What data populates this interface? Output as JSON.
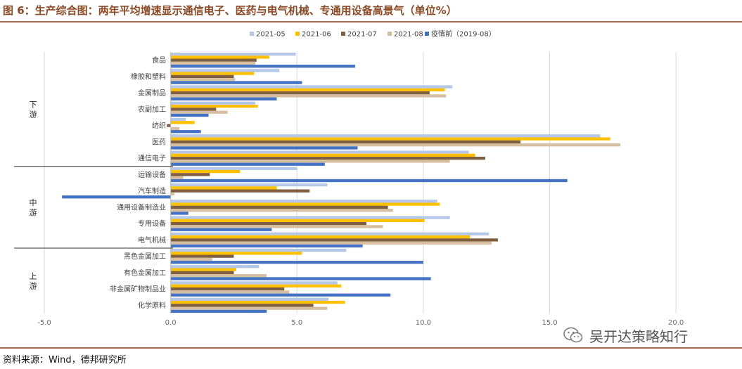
{
  "title": "图 6：生产综合图：两年平均增速显示通信电子、医药与电气机械、专通用设备高景气（单位%）",
  "source": "资料来源：Wind，德邦研究所",
  "watermark": "吴开达策略知行",
  "chart_data": {
    "type": "bar",
    "orientation": "horizontal",
    "title": "",
    "xlabel": "",
    "ylabel": "",
    "xlim": [
      -5,
      22
    ],
    "x_ticks": [
      "-5.0",
      "0.0",
      "5.0",
      "10.0",
      "15.0",
      "20.0"
    ],
    "grid": "vertical",
    "legend_position": "top",
    "categories": [
      "食品",
      "橡胶和塑料",
      "金属制品",
      "农副加工",
      "纺织",
      "医药",
      "通信电子",
      "运输设备",
      "汽车制造",
      "通用设备制造业",
      "专用设备",
      "电气机械",
      "黑色金属加工",
      "有色金属加工",
      "非金属矿物制品业",
      "化学原料"
    ],
    "groups": [
      {
        "label": "下游",
        "categories": [
          "食品",
          "橡胶和塑料",
          "金属制品",
          "农副加工",
          "纺织",
          "医药",
          "通信电子"
        ]
      },
      {
        "label": "中游",
        "categories": [
          "运输设备",
          "汽车制造",
          "通用设备制造业",
          "专用设备",
          "电气机械"
        ]
      },
      {
        "label": "上游",
        "categories": [
          "黑色金属加工",
          "有色金属加工",
          "非金属矿物制品业",
          "化学原料"
        ]
      }
    ],
    "series": [
      {
        "name": "2021-05",
        "color": "#B4C7E7",
        "values": [
          4.95,
          4.3,
          11.15,
          3.35,
          0.6,
          17.0,
          11.8,
          5.0,
          6.2,
          10.55,
          11.05,
          12.6,
          6.95,
          3.5,
          6.6,
          6.25
        ]
      },
      {
        "name": "2021-06",
        "color": "#FFC000",
        "values": [
          3.9,
          3.3,
          10.85,
          3.45,
          0.95,
          17.4,
          12.05,
          2.75,
          4.2,
          10.65,
          10.05,
          11.85,
          5.2,
          2.6,
          6.75,
          6.9
        ]
      },
      {
        "name": "2021-07",
        "color": "#7F5F3F",
        "values": [
          3.4,
          2.5,
          10.25,
          1.8,
          -0.15,
          13.85,
          12.45,
          1.55,
          5.5,
          8.6,
          7.75,
          12.95,
          2.5,
          2.5,
          4.5,
          5.65
        ]
      },
      {
        "name": "2021-08",
        "color": "#D6BFA0",
        "values": [
          3.35,
          2.55,
          10.9,
          2.25,
          0.35,
          17.8,
          11.05,
          0.5,
          0.15,
          8.8,
          8.4,
          12.7,
          1.65,
          3.8,
          4.7,
          6.2
        ]
      },
      {
        "name": "疫情前（2019-08）",
        "color": "#4472C4",
        "values": [
          7.3,
          5.2,
          4.2,
          1.5,
          1.2,
          7.4,
          6.1,
          15.7,
          -4.3,
          0.7,
          4.0,
          7.6,
          10.0,
          10.3,
          8.7,
          3.8
        ]
      }
    ]
  }
}
